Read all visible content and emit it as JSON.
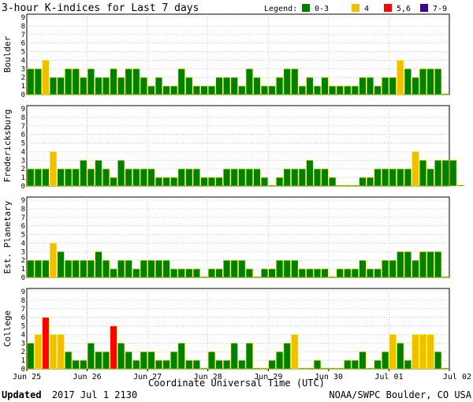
{
  "chart_data": {
    "type": "bar",
    "title": "3-hour K-indices for Last 7 days",
    "legend": {
      "title": "Legend:",
      "placement": "top-right",
      "entries": [
        {
          "label": "0-3",
          "color": "#008000"
        },
        {
          "label": "4",
          "color": "#f0c000"
        },
        {
          "label": "5,6",
          "color": "#ff0000"
        },
        {
          "label": "7-9",
          "color": "#400090"
        }
      ]
    },
    "xlabel": "Coordinate Universal Time (UTC)",
    "x_ticks": [
      "Jun 25",
      "Jun 26",
      "Jun 27",
      "Jun 28",
      "Jun 29",
      "Jun 30",
      "Jul 01",
      "Jul 02"
    ],
    "ylim": [
      0,
      9
    ],
    "y_ticks": [
      "0",
      "1",
      "2",
      "3",
      "4",
      "5",
      "6",
      "7",
      "8",
      "9"
    ],
    "grid": true,
    "interval_hours": 3,
    "panels": [
      {
        "name": "Boulder",
        "values": [
          3,
          3,
          4,
          2,
          2,
          3,
          3,
          2,
          3,
          2,
          2,
          3,
          2,
          3,
          3,
          2,
          1,
          2,
          1,
          1,
          3,
          2,
          1,
          1,
          1,
          2,
          2,
          2,
          1,
          3,
          2,
          1,
          1,
          2,
          3,
          3,
          1,
          2,
          1,
          2,
          1,
          1,
          1,
          1,
          2,
          2,
          1,
          2,
          2,
          4,
          3,
          2,
          3,
          3,
          3,
          0.1
        ]
      },
      {
        "name": "Fredericksburg",
        "values": [
          2,
          2,
          2,
          4,
          2,
          2,
          2,
          3,
          2,
          3,
          2,
          1,
          3,
          2,
          2,
          2,
          2,
          1,
          1,
          1,
          2,
          2,
          2,
          1,
          1,
          1,
          2,
          2,
          2,
          2,
          2,
          1,
          0.1,
          1,
          2,
          2,
          2,
          3,
          2,
          2,
          1,
          0.1,
          0.1,
          0.1,
          1,
          1,
          2,
          2,
          2,
          2,
          2,
          4,
          3,
          2,
          3,
          3,
          3,
          0.1
        ]
      },
      {
        "name": "Est. Planetary",
        "values": [
          2,
          2,
          2,
          4,
          3,
          2,
          2,
          2,
          2,
          3,
          2,
          1,
          2,
          2,
          1,
          2,
          2,
          2,
          2,
          1,
          1,
          1,
          1,
          0.1,
          1,
          1,
          2,
          2,
          2,
          1,
          0.1,
          1,
          1,
          2,
          2,
          2,
          1,
          1,
          1,
          1,
          0.1,
          1,
          1,
          1,
          2,
          1,
          1,
          2,
          2,
          3,
          3,
          2,
          3,
          3,
          3,
          0.1
        ]
      },
      {
        "name": "College",
        "values": [
          3,
          4,
          6,
          4,
          4,
          2,
          1,
          1,
          3,
          2,
          2,
          5,
          3,
          2,
          1,
          2,
          2,
          1,
          1,
          2,
          3,
          1,
          1,
          0.1,
          2,
          1,
          1,
          3,
          1,
          3,
          0.1,
          0.1,
          1,
          2,
          3,
          4,
          0.1,
          0.1,
          1,
          0.1,
          0.1,
          0.1,
          1,
          1,
          2,
          0.1,
          1,
          2,
          4,
          3,
          1,
          4,
          4,
          4,
          2,
          0.1
        ]
      }
    ]
  },
  "footer": {
    "updated_label": "Updated",
    "updated_value": "2017 Jul  1 2130",
    "source": "NOAA/SWPC Boulder, CO USA"
  }
}
